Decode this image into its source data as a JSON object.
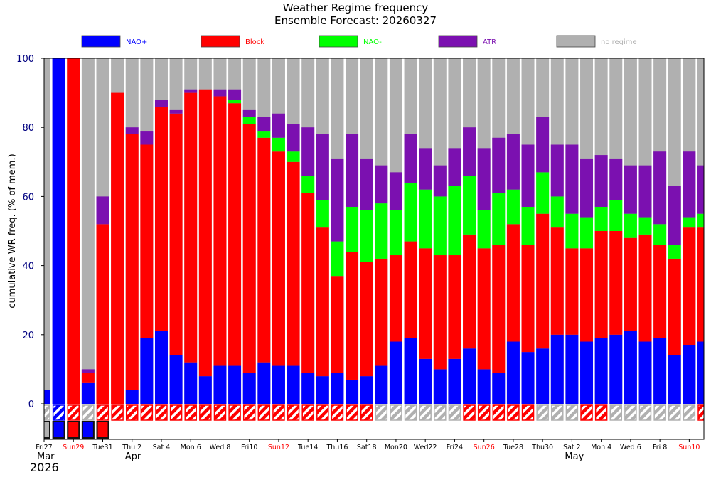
{
  "chart_data": {
    "type": "bar",
    "stacked": true,
    "title": "Weather Regime frequency",
    "subtitle": "Ensemble Forecast: 20260327",
    "ylabel": "cumulative WR freq. (% of mem.)",
    "xlabel": "",
    "ylim": [
      -10,
      100
    ],
    "yticks": [
      0,
      20,
      40,
      60,
      80,
      100
    ],
    "legend_placement": "top",
    "legend": [
      {
        "key": "nao_plus",
        "label": "NAO+",
        "color": "#0000ff"
      },
      {
        "key": "block",
        "label": "Block",
        "color": "#ff0000"
      },
      {
        "key": "nao_minus",
        "label": "NAO-",
        "color": "#00ff00"
      },
      {
        "key": "atr",
        "label": "ATR",
        "color": "#7b10b0"
      },
      {
        "key": "none",
        "label": "no regime",
        "color": "#b0b0b0"
      }
    ],
    "x_tick_labels": [
      {
        "day": 0,
        "label": "Fri27",
        "color": "#000000"
      },
      {
        "day": 2,
        "label": "Sun29",
        "color": "#ff0000"
      },
      {
        "day": 4,
        "label": "Tue31",
        "color": "#000000"
      },
      {
        "day": 6,
        "label": "Thu 2",
        "color": "#000000"
      },
      {
        "day": 8,
        "label": "Sat 4",
        "color": "#000000"
      },
      {
        "day": 10,
        "label": "Mon 6",
        "color": "#000000"
      },
      {
        "day": 12,
        "label": "Wed 8",
        "color": "#000000"
      },
      {
        "day": 14,
        "label": "Fri10",
        "color": "#000000"
      },
      {
        "day": 16,
        "label": "Sun12",
        "color": "#ff0000"
      },
      {
        "day": 18,
        "label": "Tue14",
        "color": "#000000"
      },
      {
        "day": 20,
        "label": "Thu16",
        "color": "#000000"
      },
      {
        "day": 22,
        "label": "Sat18",
        "color": "#000000"
      },
      {
        "day": 24,
        "label": "Mon20",
        "color": "#000000"
      },
      {
        "day": 26,
        "label": "Wed22",
        "color": "#000000"
      },
      {
        "day": 28,
        "label": "Fri24",
        "color": "#000000"
      },
      {
        "day": 30,
        "label": "Sun26",
        "color": "#ff0000"
      },
      {
        "day": 32,
        "label": "Tue28",
        "color": "#000000"
      },
      {
        "day": 34,
        "label": "Thu30",
        "color": "#000000"
      },
      {
        "day": 36,
        "label": "Sat 2",
        "color": "#000000"
      },
      {
        "day": 38,
        "label": "Mon 4",
        "color": "#000000"
      },
      {
        "day": 40,
        "label": "Wed 6",
        "color": "#000000"
      },
      {
        "day": 42,
        "label": "Fri 8",
        "color": "#000000"
      },
      {
        "day": 44,
        "label": "Sun10",
        "color": "#ff0000"
      }
    ],
    "month_labels": [
      {
        "day": 0,
        "label": "Mar"
      },
      {
        "day": 6,
        "label": "Apr"
      },
      {
        "day": 36,
        "label": "May"
      }
    ],
    "year_label": "2026",
    "series": [
      {
        "name": "NAO+",
        "values": [
          4,
          100,
          0,
          6,
          0,
          0,
          4,
          19,
          21,
          14,
          12,
          8,
          11,
          11,
          9,
          12,
          11,
          11,
          9,
          8,
          9,
          7,
          8,
          11,
          18,
          19,
          13,
          10,
          13,
          16,
          10,
          9,
          18,
          15,
          16,
          20,
          20,
          18,
          19,
          20,
          21,
          18,
          19,
          14,
          17,
          18
        ]
      },
      {
        "name": "Block",
        "values": [
          0,
          0,
          100,
          3,
          52,
          90,
          74,
          56,
          65,
          70,
          78,
          83,
          78,
          76,
          72,
          65,
          62,
          59,
          52,
          43,
          28,
          37,
          33,
          31,
          25,
          28,
          32,
          33,
          30,
          33,
          35,
          37,
          34,
          31,
          39,
          31,
          25,
          27,
          31,
          30,
          27,
          31,
          27,
          28,
          34,
          33
        ]
      },
      {
        "name": "NAO-",
        "values": [
          0,
          0,
          0,
          0,
          0,
          0,
          0,
          0,
          0,
          0,
          0,
          0,
          0,
          1,
          2,
          2,
          4,
          3,
          5,
          8,
          10,
          13,
          15,
          16,
          13,
          17,
          17,
          17,
          20,
          17,
          11,
          15,
          10,
          11,
          12,
          9,
          10,
          9,
          7,
          9,
          7,
          5,
          6,
          4,
          3,
          4
        ]
      },
      {
        "name": "ATR",
        "values": [
          0,
          0,
          0,
          1,
          8,
          0,
          2,
          4,
          2,
          1,
          1,
          0,
          2,
          3,
          2,
          4,
          7,
          8,
          14,
          19,
          24,
          21,
          15,
          11,
          11,
          14,
          12,
          9,
          11,
          14,
          18,
          16,
          16,
          18,
          16,
          15,
          20,
          17,
          15,
          12,
          14,
          15,
          21,
          17,
          19,
          14
        ]
      }
    ],
    "forecast_regime_row": [
      "none",
      "nao_plus",
      "block",
      "none",
      "block",
      "block",
      "block",
      "block",
      "block",
      "block",
      "block",
      "block",
      "block",
      "block",
      "block",
      "block",
      "block",
      "block",
      "block",
      "block",
      "block",
      "block",
      "block",
      "none",
      "none",
      "none",
      "none",
      "none",
      "none",
      "block",
      "block",
      "block",
      "block",
      "block",
      "none",
      "none",
      "none",
      "block",
      "block",
      "none",
      "none",
      "none",
      "none",
      "none",
      "none",
      "block"
    ],
    "analysis_regime_row": [
      "none",
      "nao_plus",
      "block",
      "nao_plus",
      "block"
    ]
  }
}
